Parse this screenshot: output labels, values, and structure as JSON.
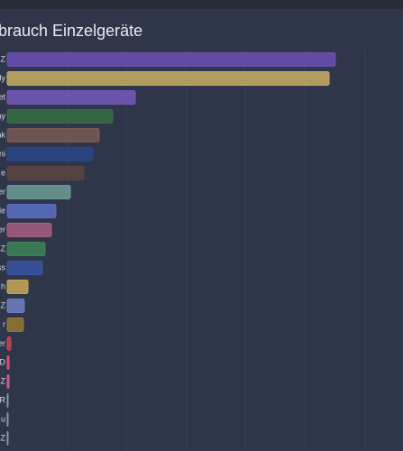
{
  "chart_data": {
    "type": "hbar",
    "title": "brauch Einzelgeräte",
    "categories": [
      "Z",
      "ly",
      "et",
      "ay",
      "ak",
      "ni",
      "e",
      "er",
      "le",
      "er",
      "Z",
      "ss",
      "h",
      "Z",
      "r",
      "er",
      "D",
      "Z",
      "R",
      "u",
      "Z"
    ],
    "values": [
      364,
      357,
      142,
      117,
      102,
      95,
      85,
      70,
      54,
      49,
      42,
      39,
      23,
      19,
      18,
      4,
      2,
      2,
      1,
      1,
      1
    ],
    "colors": [
      "#6b4fb3",
      "#c8ad63",
      "#7558bd",
      "#356e45",
      "#7a5b52",
      "#2c4687",
      "#5a4440",
      "#6c9c94",
      "#5870c2",
      "#a85e80",
      "#3c8256",
      "#3a53a2",
      "#c9a757",
      "#6d80c2",
      "#957833",
      "#c74553",
      "#e0507a",
      "#d0608e",
      "#8a93b8",
      "#8a93b8",
      "#8a93b8"
    ]
  }
}
